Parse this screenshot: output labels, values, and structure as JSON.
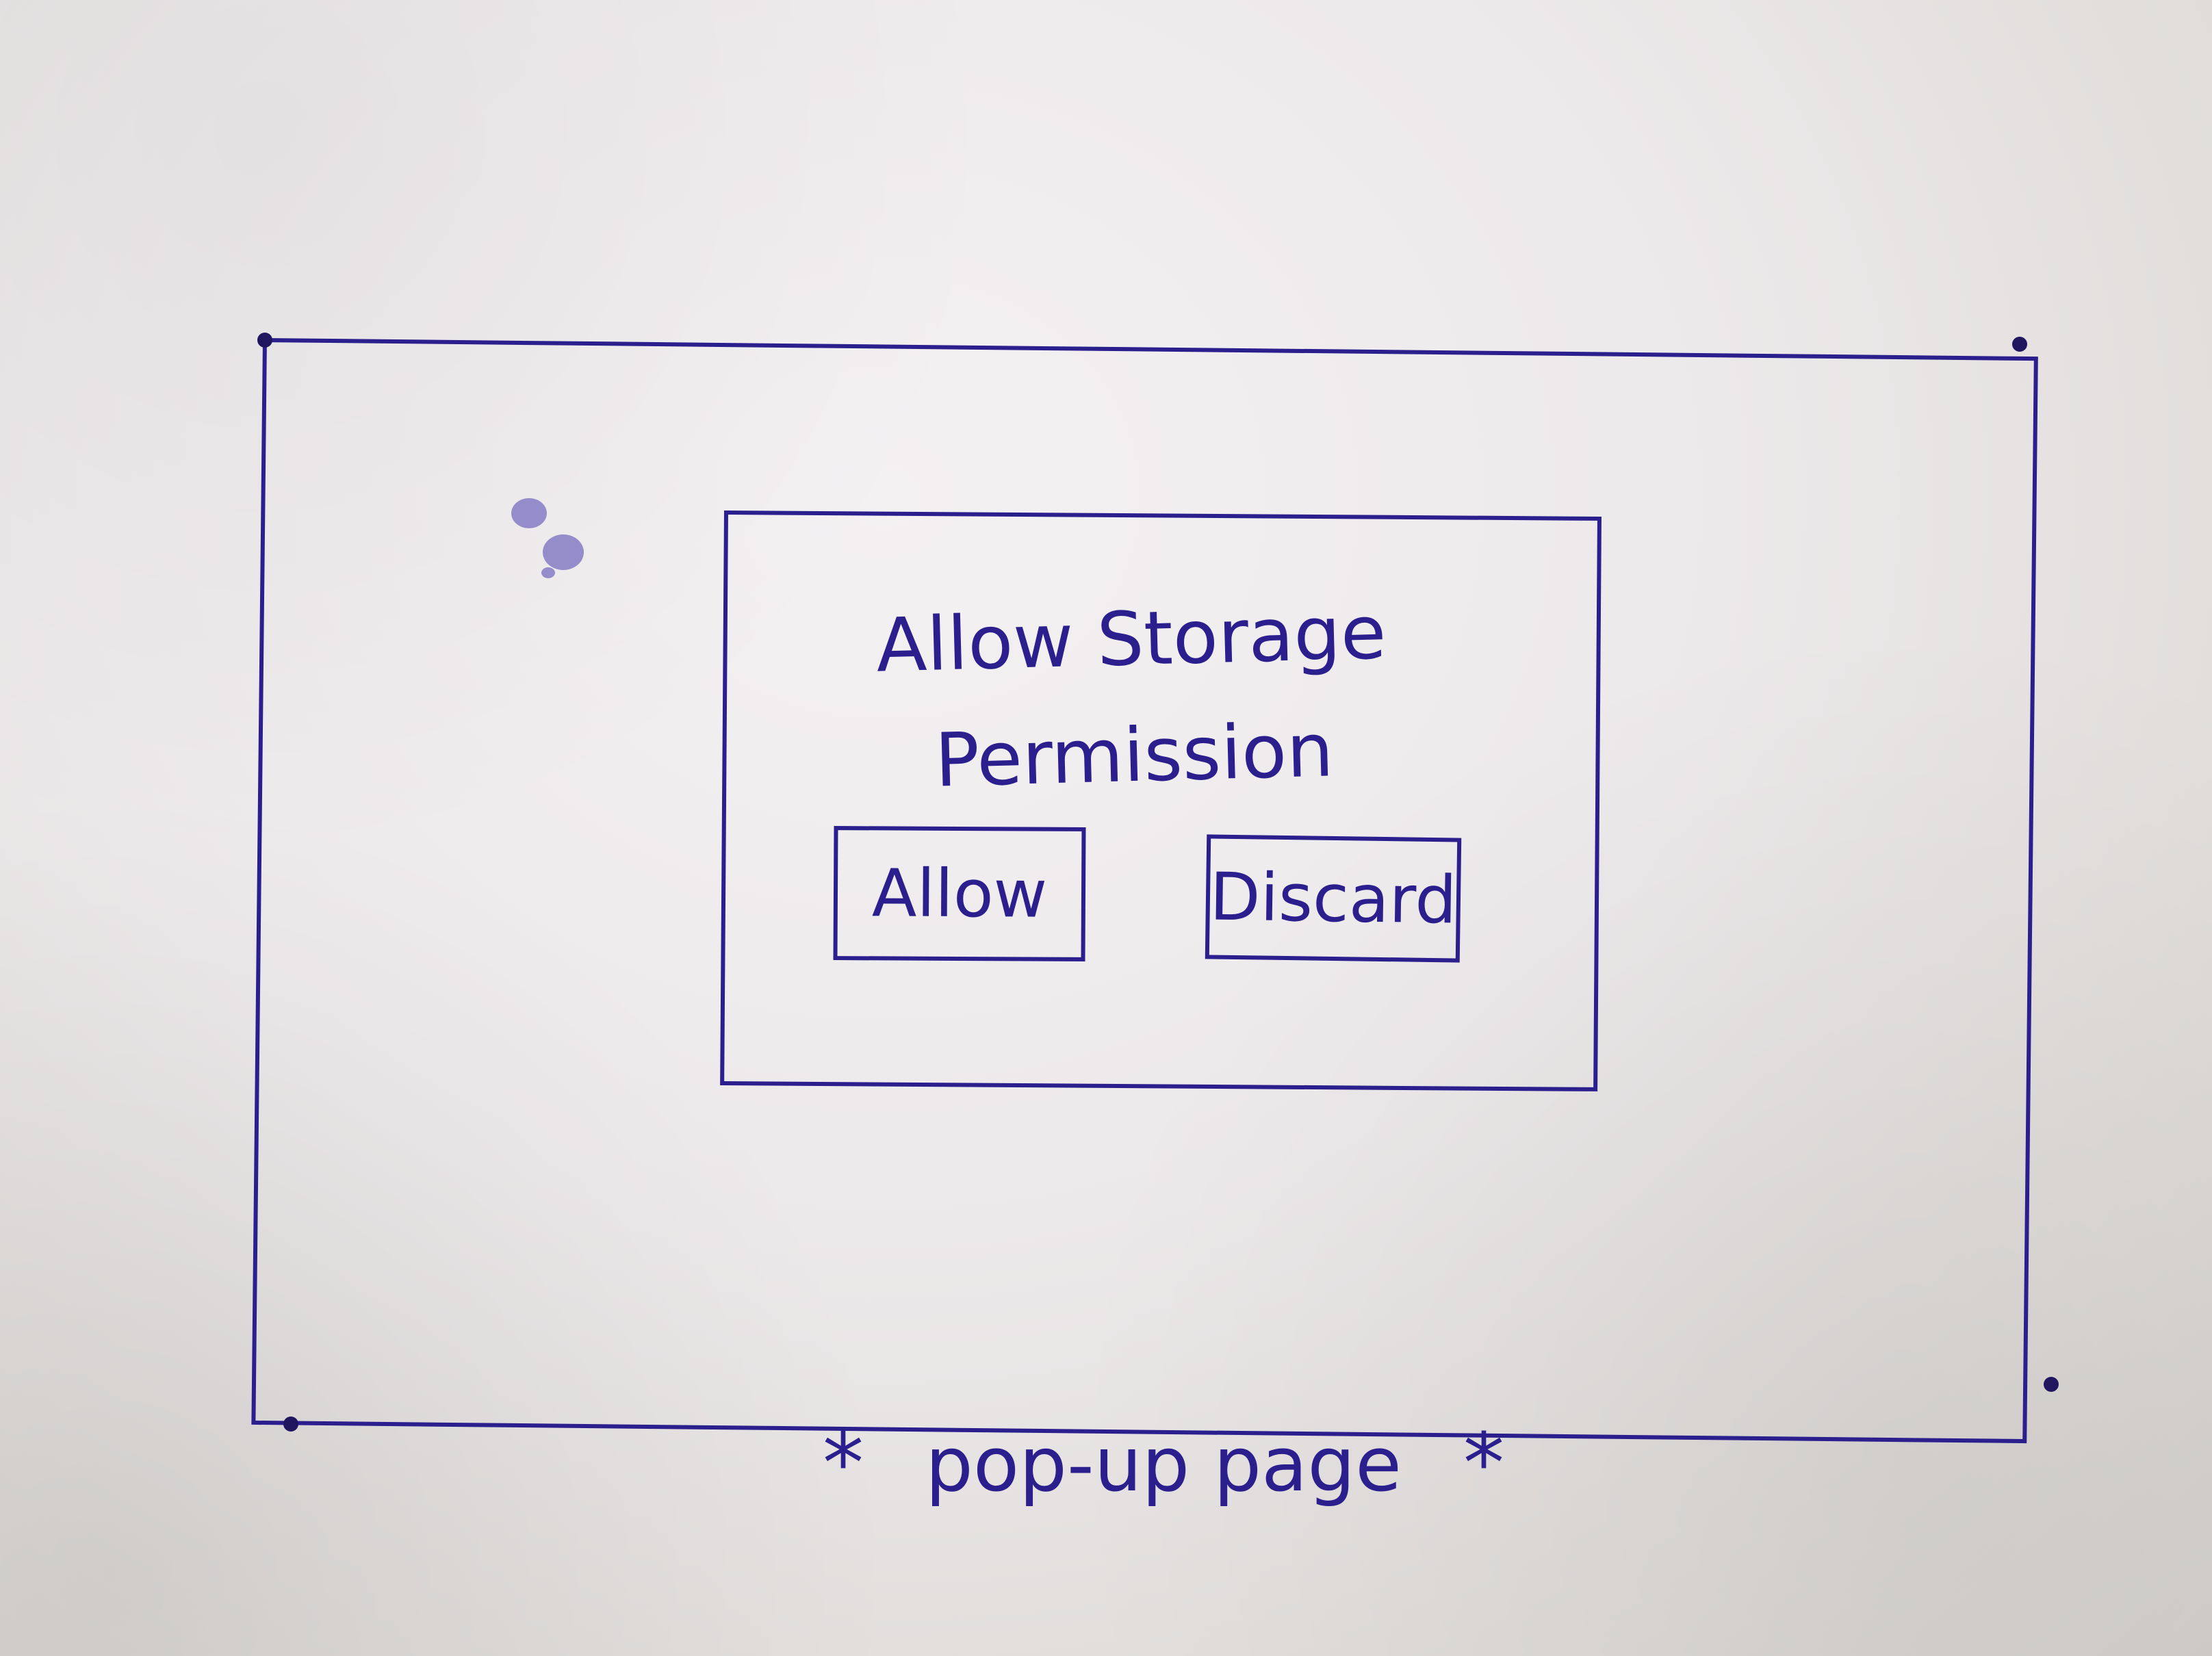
{
  "sketch": {
    "dialog": {
      "title": "Allow Storage\nPermission",
      "allow_label": "Allow",
      "discard_label": "Discard"
    },
    "caption": {
      "prefix_mark": "*",
      "text": "pop-up page",
      "suffix_mark": "*"
    }
  }
}
